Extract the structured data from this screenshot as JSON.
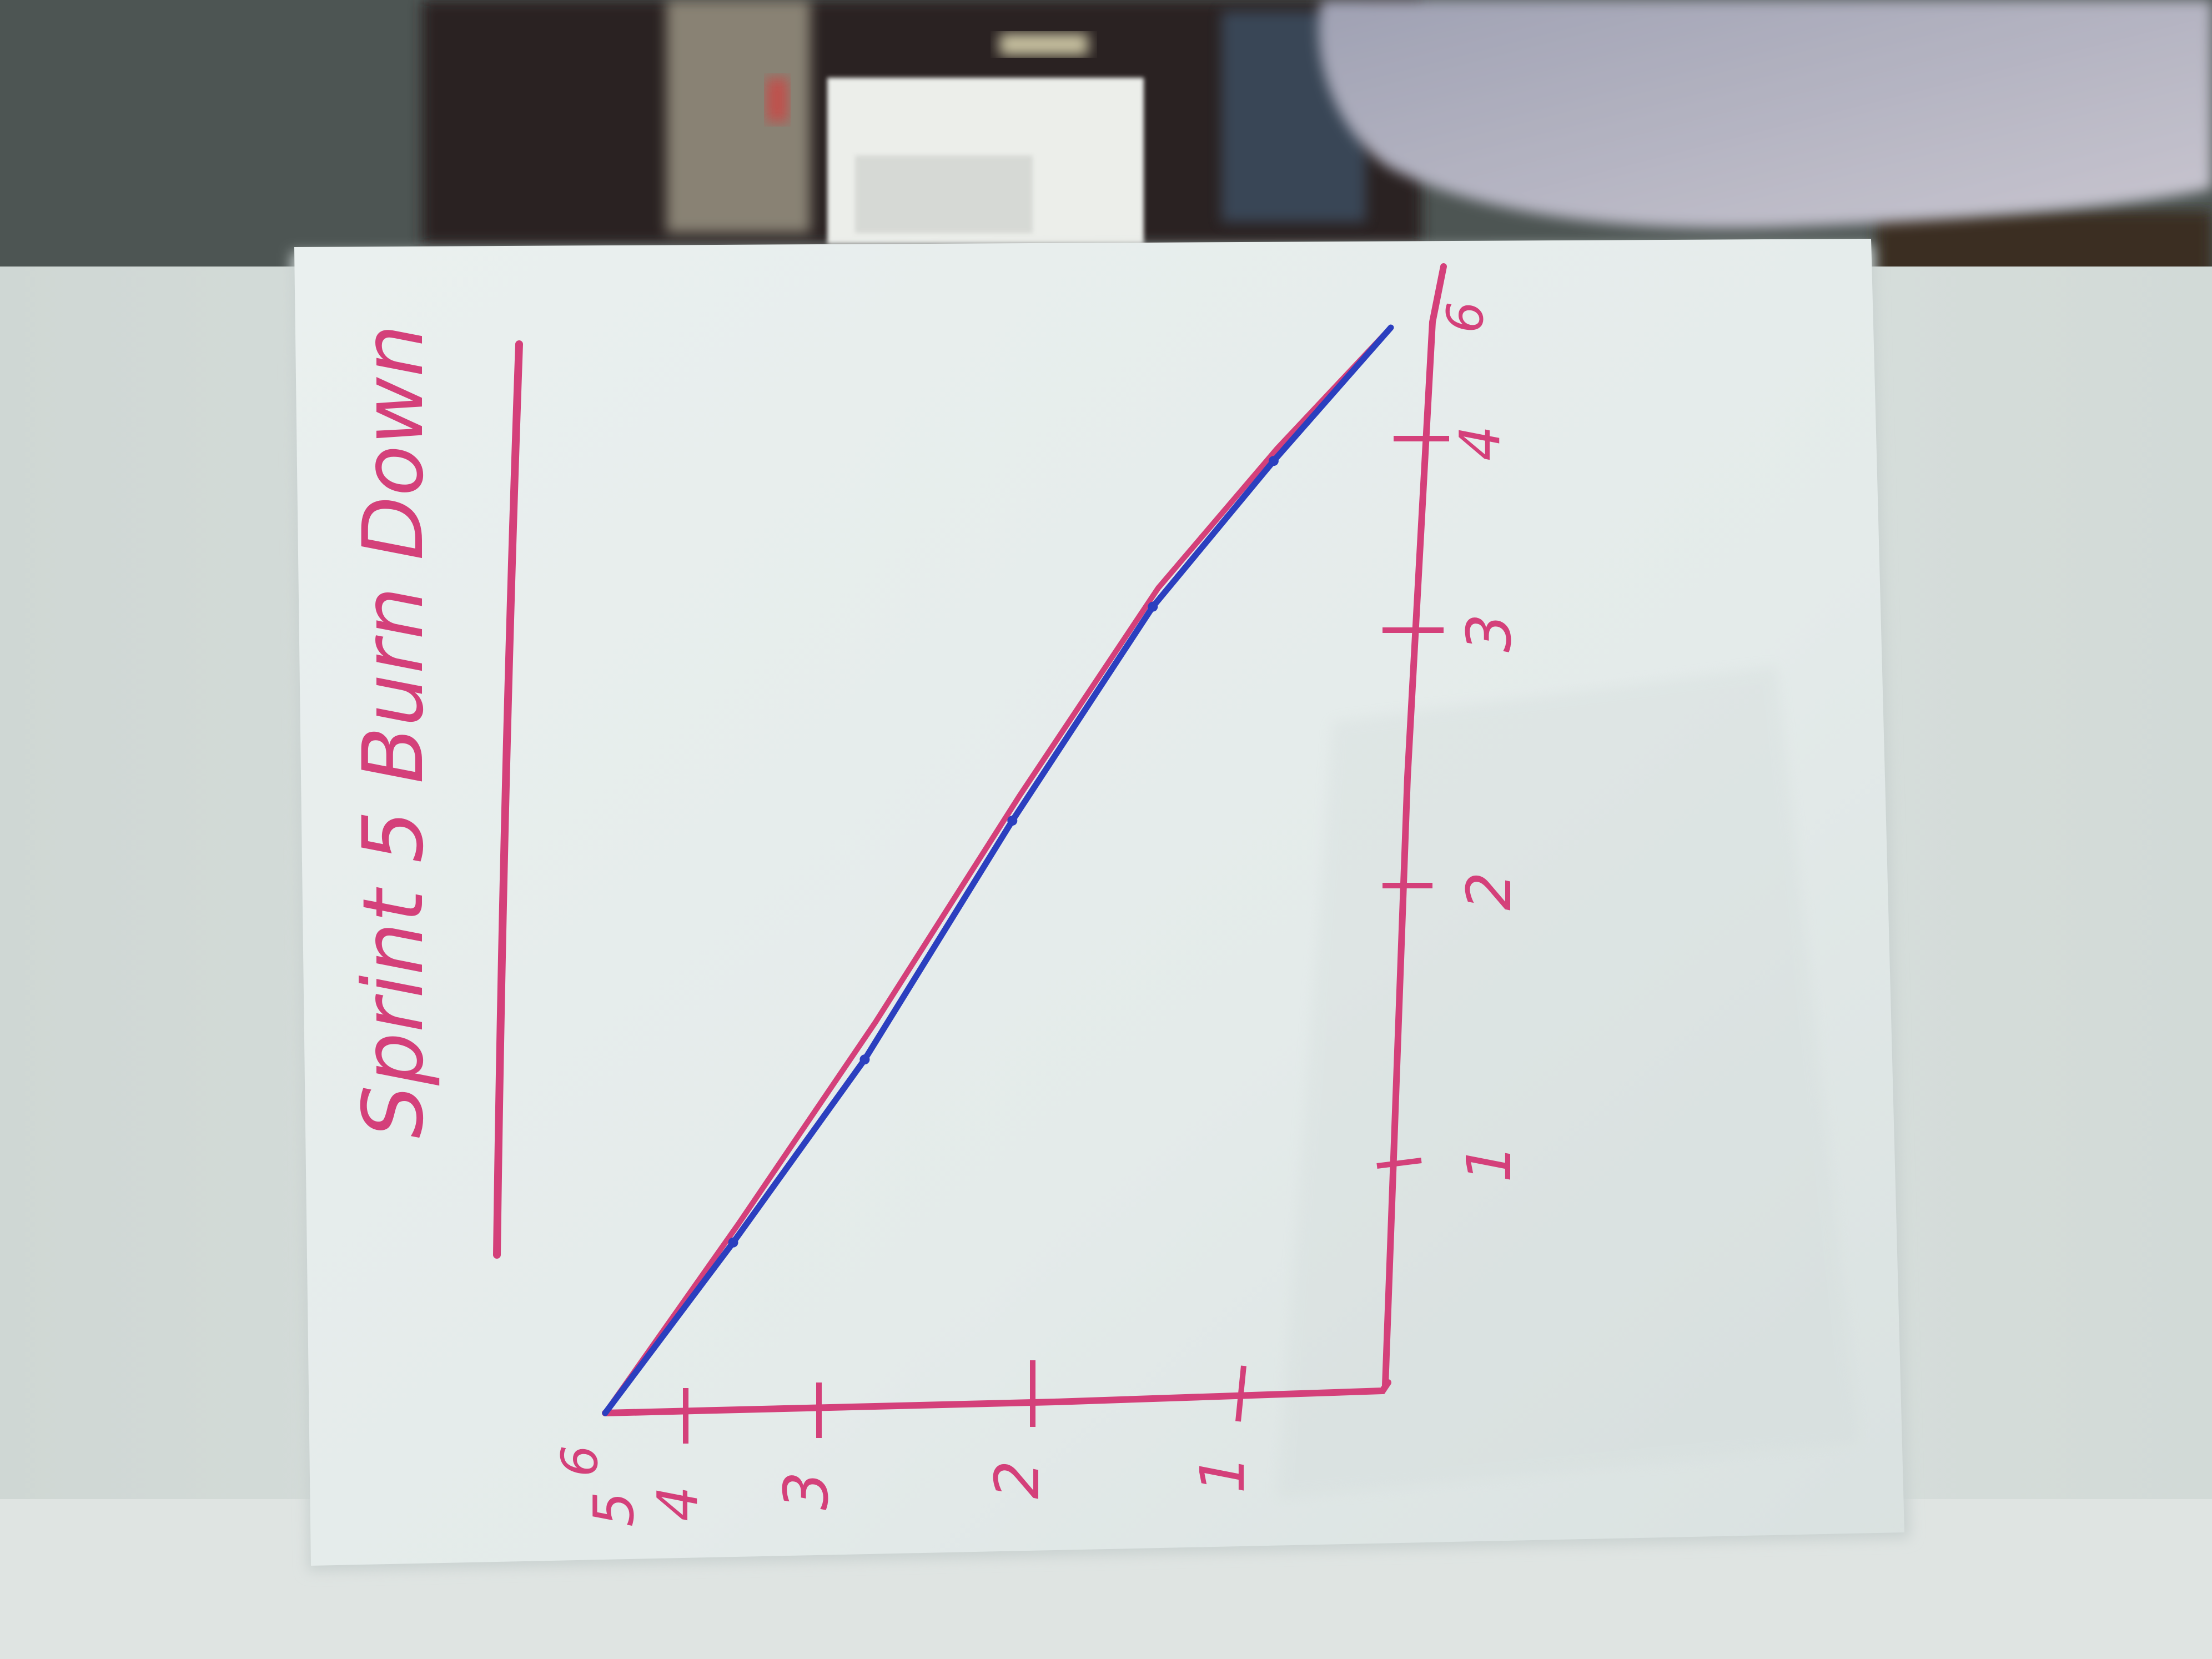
{
  "photo": {
    "description_free": true,
    "colors": {
      "wall_background": "#d7dedb",
      "paper": "#e6eceb",
      "paper_shadow": "#c9d1d0",
      "marker_pink": "#d4407a",
      "marker_blue": "#2b3fbf",
      "window_dark": "#2a2420",
      "sleeve": "#a7a8b8"
    }
  },
  "flipchart": {
    "title": "Sprint 5 Burn Down",
    "x_tick_labels": [
      "1",
      "2",
      "3",
      "4",
      "5",
      "6"
    ],
    "y_tick_labels": [
      "1",
      "2",
      "3",
      "4",
      "5"
    ],
    "y_axis_top_label": "6",
    "chart": {
      "ideal_line_values": [
        5,
        4.1,
        3.1,
        1.9,
        0.85,
        0.35,
        0
      ],
      "actual_line_values": [
        5,
        4.25,
        3.4,
        2.1,
        1.0,
        0.45,
        0
      ],
      "x_range": [
        0,
        6
      ],
      "y_range": [
        0,
        5
      ]
    }
  }
}
